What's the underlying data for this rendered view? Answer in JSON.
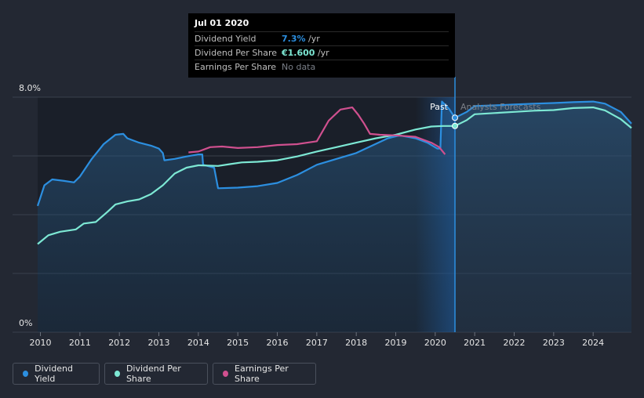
{
  "tooltip": {
    "date": "Jul 01 2020",
    "rows": [
      {
        "key": "Dividend Yield",
        "value": "7.3%",
        "unit": " /yr",
        "color": "#2c8fe0"
      },
      {
        "key": "Dividend Per Share",
        "value": "€1.600",
        "unit": " /yr",
        "color": "#7de8d4"
      },
      {
        "key": "Earnings Per Share",
        "value": "No data",
        "unit": "",
        "color": "#7a7f88"
      }
    ]
  },
  "legend": [
    {
      "label": "Dividend Yield",
      "color": "#2c8fe0"
    },
    {
      "label": "Dividend Per Share",
      "color": "#7de8d4"
    },
    {
      "label": "Earnings Per Share",
      "color": "#d0508f"
    }
  ],
  "chart_data": {
    "type": "line",
    "y_axis_labels": [
      "8.0%",
      "0%"
    ],
    "past_label": "Past",
    "forecast_label": "Analysts Forecasts",
    "x_ticks": [
      "2010",
      "2011",
      "2012",
      "2013",
      "2014",
      "2015",
      "2016",
      "2017",
      "2018",
      "2019",
      "2020",
      "2021",
      "2022",
      "2023",
      "2024"
    ],
    "xlim": [
      2009.93,
      2024.97
    ],
    "ylim": [
      0,
      8.0
    ],
    "current_x": 2020.5,
    "series": [
      {
        "name": "Dividend Yield",
        "color": "#2c8fe0",
        "fill": true,
        "points": [
          [
            2009.93,
            4.3
          ],
          [
            2010.1,
            5.0
          ],
          [
            2010.3,
            5.2
          ],
          [
            2010.6,
            5.15
          ],
          [
            2010.85,
            5.1
          ],
          [
            2011.0,
            5.3
          ],
          [
            2011.3,
            5.9
          ],
          [
            2011.6,
            6.4
          ],
          [
            2011.9,
            6.72
          ],
          [
            2012.1,
            6.75
          ],
          [
            2012.2,
            6.6
          ],
          [
            2012.5,
            6.45
          ],
          [
            2012.8,
            6.35
          ],
          [
            2013.0,
            6.25
          ],
          [
            2013.1,
            6.1
          ],
          [
            2013.14,
            5.85
          ],
          [
            2013.4,
            5.9
          ],
          [
            2013.7,
            5.98
          ],
          [
            2014.0,
            6.05
          ],
          [
            2014.1,
            6.05
          ],
          [
            2014.12,
            5.7
          ],
          [
            2014.4,
            5.6
          ],
          [
            2014.5,
            4.9
          ],
          [
            2015.0,
            4.92
          ],
          [
            2015.5,
            4.97
          ],
          [
            2016.0,
            5.08
          ],
          [
            2016.5,
            5.35
          ],
          [
            2017.0,
            5.7
          ],
          [
            2017.5,
            5.9
          ],
          [
            2018.0,
            6.1
          ],
          [
            2018.4,
            6.35
          ],
          [
            2018.8,
            6.6
          ],
          [
            2019.1,
            6.7
          ],
          [
            2019.5,
            6.6
          ],
          [
            2019.8,
            6.45
          ],
          [
            2020.05,
            6.25
          ],
          [
            2020.13,
            6.25
          ],
          [
            2020.17,
            7.85
          ],
          [
            2020.28,
            7.7
          ],
          [
            2020.35,
            7.6
          ],
          [
            2020.5,
            7.3
          ],
          [
            2020.8,
            7.5
          ],
          [
            2021.0,
            7.7
          ],
          [
            2021.5,
            7.72
          ],
          [
            2022.0,
            7.75
          ],
          [
            2022.5,
            7.78
          ],
          [
            2023.0,
            7.8
          ],
          [
            2023.5,
            7.83
          ],
          [
            2024.0,
            7.85
          ],
          [
            2024.3,
            7.78
          ],
          [
            2024.7,
            7.5
          ],
          [
            2024.97,
            7.1
          ]
        ]
      },
      {
        "name": "Dividend Per Share",
        "color": "#7de8d4",
        "fill": true,
        "points": [
          [
            2009.93,
            3.0
          ],
          [
            2010.2,
            3.3
          ],
          [
            2010.5,
            3.42
          ],
          [
            2010.9,
            3.5
          ],
          [
            2011.1,
            3.7
          ],
          [
            2011.4,
            3.75
          ],
          [
            2011.7,
            4.1
          ],
          [
            2011.9,
            4.35
          ],
          [
            2012.2,
            4.45
          ],
          [
            2012.5,
            4.52
          ],
          [
            2012.8,
            4.7
          ],
          [
            2013.1,
            5.0
          ],
          [
            2013.4,
            5.4
          ],
          [
            2013.7,
            5.6
          ],
          [
            2014.0,
            5.68
          ],
          [
            2014.5,
            5.66
          ],
          [
            2014.8,
            5.72
          ],
          [
            2015.1,
            5.78
          ],
          [
            2015.5,
            5.8
          ],
          [
            2016.0,
            5.85
          ],
          [
            2016.5,
            5.98
          ],
          [
            2017.0,
            6.15
          ],
          [
            2017.5,
            6.3
          ],
          [
            2018.0,
            6.45
          ],
          [
            2018.5,
            6.6
          ],
          [
            2019.0,
            6.72
          ],
          [
            2019.5,
            6.9
          ],
          [
            2019.9,
            7.0
          ],
          [
            2020.2,
            7.02
          ],
          [
            2020.5,
            7.02
          ],
          [
            2020.8,
            7.22
          ],
          [
            2021.0,
            7.42
          ],
          [
            2021.5,
            7.46
          ],
          [
            2022.0,
            7.5
          ],
          [
            2022.5,
            7.54
          ],
          [
            2023.0,
            7.56
          ],
          [
            2023.5,
            7.63
          ],
          [
            2024.0,
            7.65
          ],
          [
            2024.3,
            7.55
          ],
          [
            2024.7,
            7.25
          ],
          [
            2024.97,
            6.95
          ]
        ]
      },
      {
        "name": "Earnings Per Share",
        "color": "#d0508f",
        "fill": false,
        "points": [
          [
            2013.75,
            6.12
          ],
          [
            2014.0,
            6.15
          ],
          [
            2014.3,
            6.3
          ],
          [
            2014.6,
            6.32
          ],
          [
            2015.0,
            6.27
          ],
          [
            2015.5,
            6.3
          ],
          [
            2016.0,
            6.37
          ],
          [
            2016.5,
            6.4
          ],
          [
            2017.0,
            6.5
          ],
          [
            2017.3,
            7.2
          ],
          [
            2017.6,
            7.58
          ],
          [
            2017.9,
            7.65
          ],
          [
            2018.05,
            7.4
          ],
          [
            2018.2,
            7.1
          ],
          [
            2018.35,
            6.75
          ],
          [
            2018.6,
            6.72
          ],
          [
            2019.0,
            6.7
          ],
          [
            2019.5,
            6.65
          ],
          [
            2019.9,
            6.45
          ],
          [
            2020.1,
            6.3
          ],
          [
            2020.25,
            6.05
          ]
        ]
      }
    ]
  }
}
